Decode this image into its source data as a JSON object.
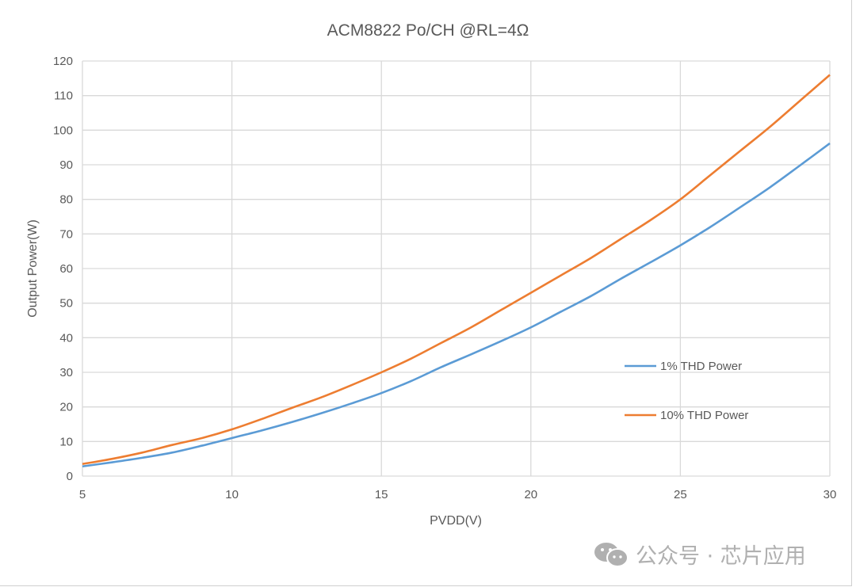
{
  "chart_data": {
    "type": "line",
    "title": "ACM8822 Po/CH @RL=4Ω",
    "xlabel": "PVDD(V)",
    "ylabel": "Output Power(W)",
    "xlim": [
      5,
      30
    ],
    "ylim": [
      0,
      120
    ],
    "xticks": [
      5,
      10,
      15,
      20,
      25,
      30
    ],
    "yticks": [
      0,
      10,
      20,
      30,
      40,
      50,
      60,
      70,
      80,
      90,
      100,
      110,
      120
    ],
    "grid": true,
    "legend_placement": "right-center",
    "x": [
      5,
      6,
      7,
      8,
      9,
      10,
      11,
      12,
      13,
      14,
      15,
      16,
      17,
      18,
      19,
      20,
      21,
      22,
      23,
      24,
      25,
      26,
      27,
      28,
      29,
      30
    ],
    "series": [
      {
        "name": "1% THD Power",
        "color": "#5b9bd5",
        "values": [
          2.8,
          4,
          5.3,
          6.8,
          8.8,
          11,
          13.2,
          15.6,
          18.2,
          21,
          24,
          27.5,
          31.5,
          35.2,
          39,
          43,
          47.5,
          52,
          57,
          61.8,
          66.7,
          72,
          77.7,
          83.5,
          89.8,
          96.2
        ]
      },
      {
        "name": "10% THD Power",
        "color": "#ed7d31",
        "values": [
          3.5,
          5,
          6.8,
          9,
          11,
          13.5,
          16.5,
          19.7,
          22.8,
          26.3,
          30,
          34,
          38.5,
          43,
          48,
          53,
          58,
          63,
          68.5,
          74,
          80,
          87,
          94,
          101,
          108.5,
          116
        ]
      }
    ]
  },
  "watermark": {
    "text": "公众号 · 芯片应用",
    "icon": "wechat-icon"
  }
}
